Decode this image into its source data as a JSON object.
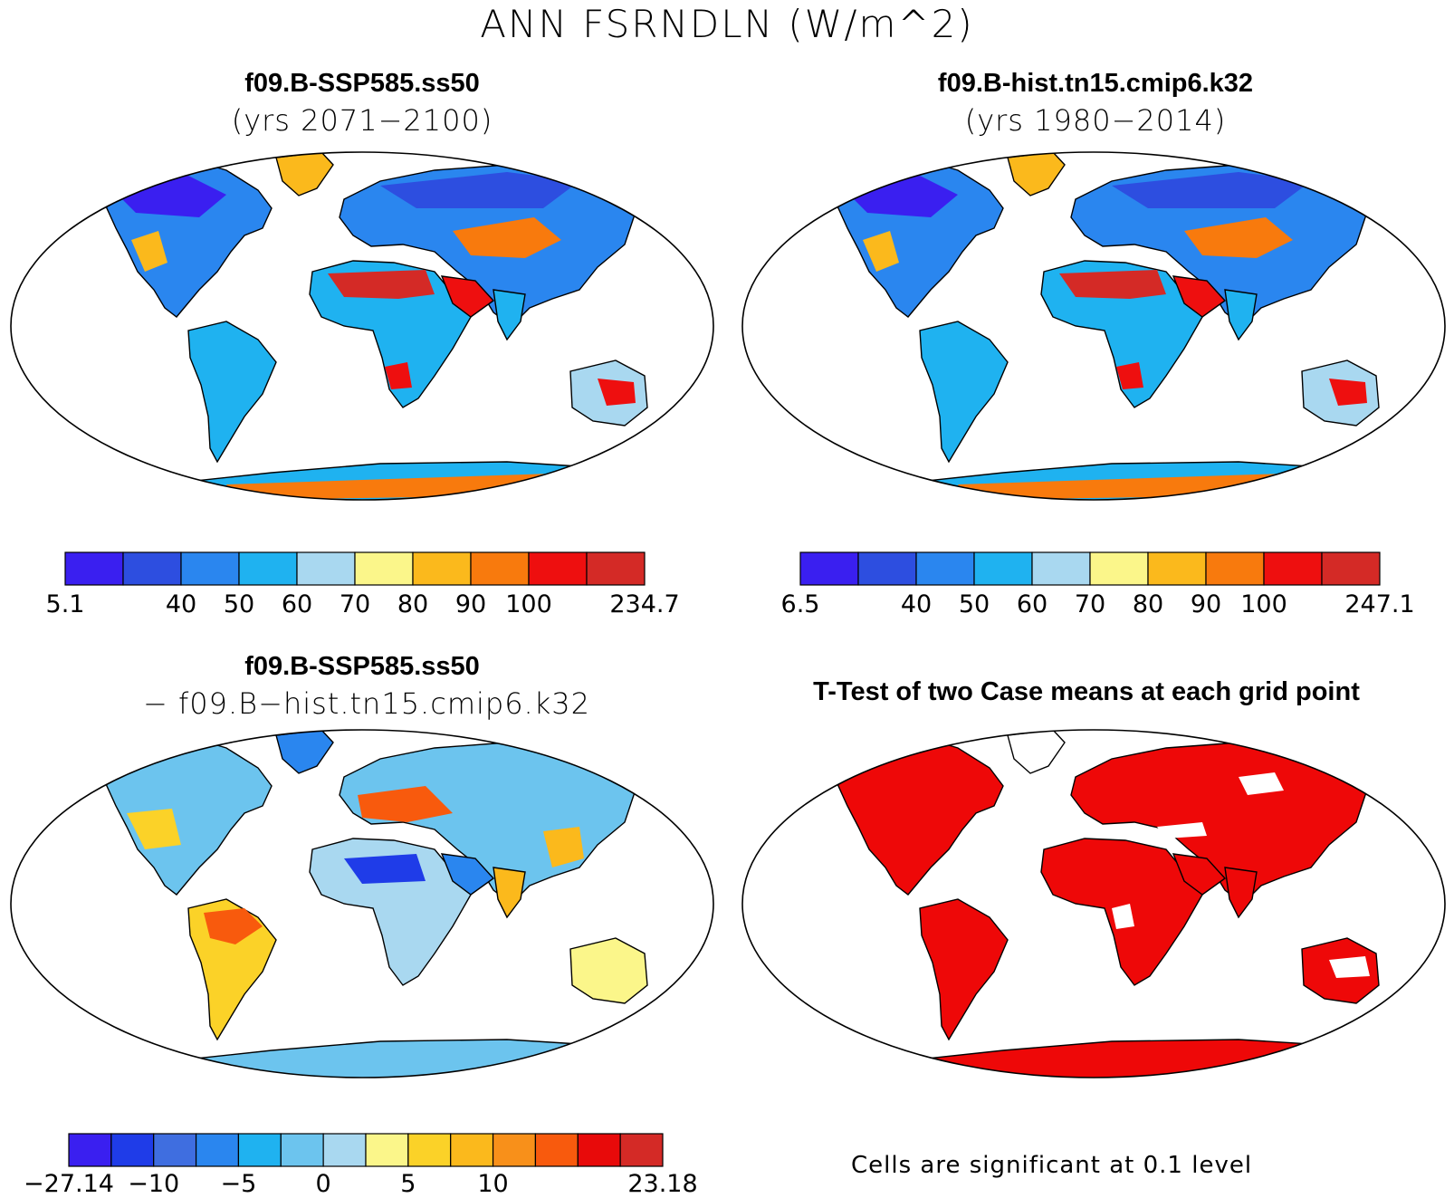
{
  "figure": {
    "title": "ANN FSRNDLN (W/m^2)"
  },
  "panels": [
    {
      "title": "f09.B-SSP585.ss50",
      "subtitle": "(yrs 2071−2100)",
      "colorbar": {
        "colors": [
          "#3a1ff0",
          "#2d4ee0",
          "#2a86ef",
          "#1fb2f0",
          "#a9d8f0",
          "#fbf68a",
          "#fbb91c",
          "#f87a0d",
          "#ee0f0f",
          "#d42a26"
        ],
        "labels": [
          "5.1",
          "",
          "40",
          "50",
          "60",
          "70",
          "80",
          "90",
          "100",
          "",
          "234.7"
        ]
      }
    },
    {
      "title": "f09.B-hist.tn15.cmip6.k32",
      "subtitle": "(yrs 1980−2014)",
      "colorbar": {
        "colors": [
          "#3a1ff0",
          "#2d4ee0",
          "#2a86ef",
          "#1fb2f0",
          "#a9d8f0",
          "#fbf68a",
          "#fbb91c",
          "#f87a0d",
          "#ee0f0f",
          "#d42a26"
        ],
        "labels": [
          "6.5",
          "",
          "40",
          "50",
          "60",
          "70",
          "80",
          "90",
          "100",
          "",
          "247.1"
        ]
      }
    },
    {
      "title": "f09.B-SSP585.ss50",
      "subtitle": "− f09.B−hist.tn15.cmip6.k32",
      "colorbar": {
        "colors": [
          "#3a1ff0",
          "#1f3ce8",
          "#3f6ee0",
          "#2a86ef",
          "#1fb2f0",
          "#6cc4ee",
          "#a9d8f0",
          "#fbf68a",
          "#fbd228",
          "#fbb91c",
          "#f8901a",
          "#f85a0d",
          "#e80a0a",
          "#d42a26"
        ],
        "labels": [
          "−27.14",
          "",
          "−10",
          "",
          "−5",
          "",
          "0",
          "",
          "5",
          "",
          "10",
          "",
          "",
          "",
          "23.18"
        ]
      }
    },
    {
      "title": "T-Test of two Case means at each grid point",
      "subtitle": "",
      "footnote": "Cells are significant at 0.1 level"
    }
  ]
}
